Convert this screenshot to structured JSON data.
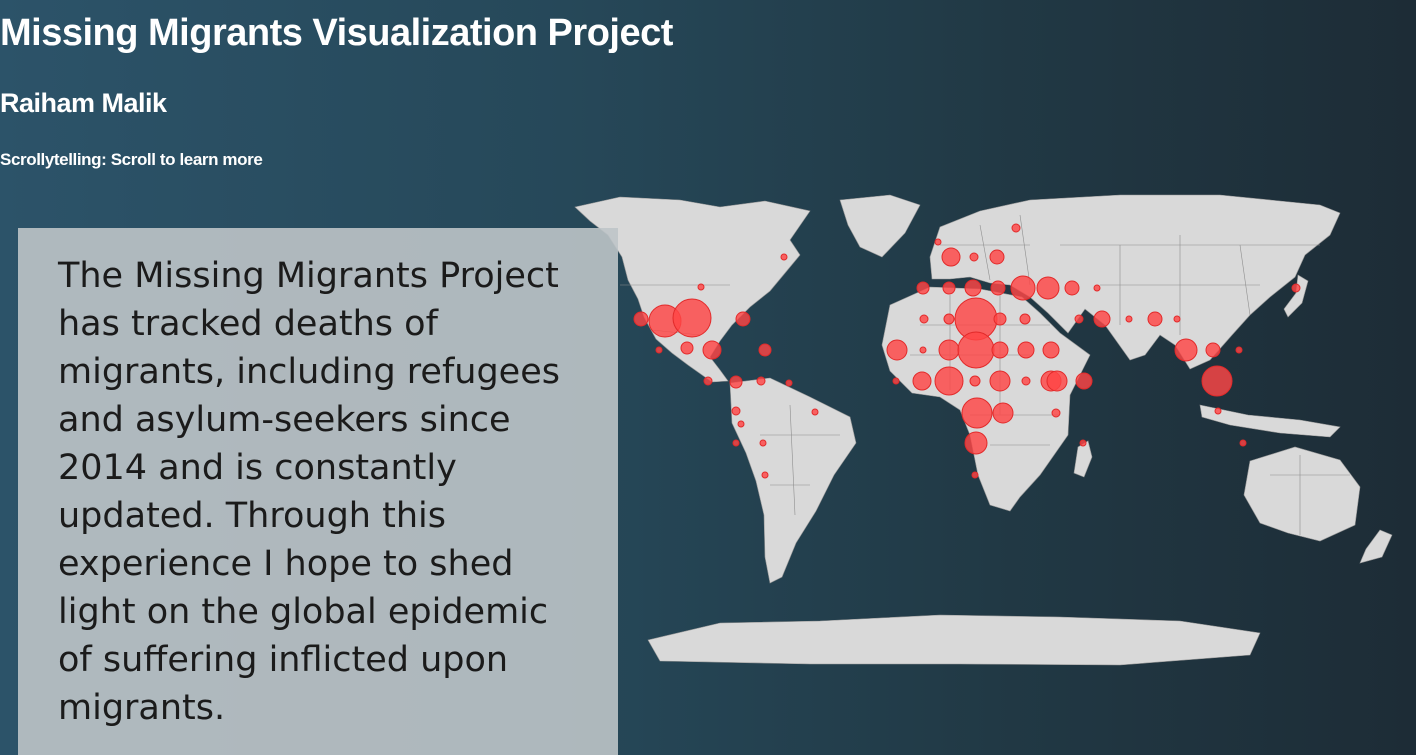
{
  "header": {
    "title": "Missing Migrants Visualization Project",
    "author": "Raiham Malik",
    "hint": "Scrollytelling: Scroll to learn more"
  },
  "story": {
    "text": "The Missing Migrants Project has tracked deaths of migrants, including refugees and asylum-seekers since 2014 and is constantly updated. Through this experience I hope to shed light on the global epidemic of suffering inflicted upon migrants."
  },
  "colors": {
    "background_left": "#2c5369",
    "background_right": "#1d2c36",
    "land": "#d9d9d9",
    "bubble_fill": "#ff4646",
    "bubble_stroke": "#e22a2a",
    "card": "#bec4c8",
    "text": "#ffffff"
  }
}
